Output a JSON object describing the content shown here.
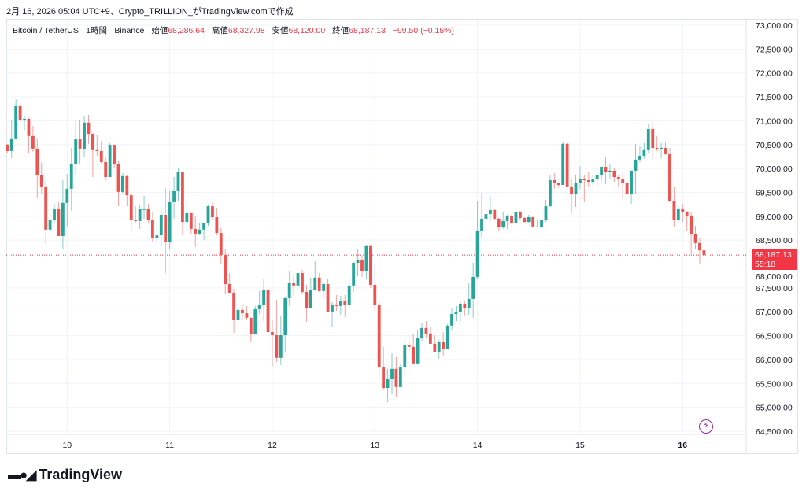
{
  "caption": "2月 16, 2026 05:04 UTC+9、Crypto_TRILLION_がTradingView.comで作成",
  "legend": {
    "symbol": "Bitcoin / TetherUS · 1時間 · Binance",
    "open_label": "始値",
    "open": "68,286.64",
    "high_label": "高値",
    "high": "68,327.98",
    "low_label": "安値",
    "low": "68,120.00",
    "close_label": "終値",
    "close": "68,187.13",
    "change": "−99.50 (−0.15%)"
  },
  "price_tag": {
    "price": "68,187.13",
    "countdown": "55:18"
  },
  "branding": {
    "logo_text": "TradingView"
  },
  "icons": {
    "alert": "lightning-icon",
    "logo": "tradingview-logo-icon"
  },
  "colors": {
    "up": "#26a69a",
    "down": "#ef5350",
    "last_price": "#f23645",
    "alert": "#9c27b0"
  },
  "chart_data": {
    "type": "candlestick",
    "interval": "1時間",
    "first_candle": "2026-02-09 10:00",
    "last_price": 68187.13,
    "ylim": [
      64500,
      73000
    ],
    "y_ticks": [
      "73,000.00",
      "72,500.00",
      "72,000.00",
      "71,500.00",
      "71,000.00",
      "70,500.00",
      "70,000.00",
      "69,500.00",
      "69,000.00",
      "68,500.00",
      "68,000.00",
      "67,500.00",
      "67,000.00",
      "66,500.00",
      "66,000.00",
      "65,500.00",
      "65,000.00",
      "64,500.00"
    ],
    "x_ticks": [
      "10",
      "11",
      "12",
      "13",
      "14",
      "15",
      "16"
    ],
    "grid": true,
    "ohlc": [
      [
        70500,
        70515,
        70330,
        70365
      ],
      [
        70365,
        71005,
        70215,
        70630
      ],
      [
        70630,
        71450,
        70610,
        71305
      ],
      [
        71305,
        71355,
        70925,
        71005
      ],
      [
        71005,
        71105,
        70810,
        71040
      ],
      [
        71040,
        71055,
        70315,
        70680
      ],
      [
        70680,
        70890,
        70350,
        70415
      ],
      [
        70415,
        70610,
        69395,
        69870
      ],
      [
        69870,
        70120,
        69475,
        69625
      ],
      [
        69625,
        69740,
        68420,
        68720
      ],
      [
        68720,
        69030,
        68570,
        68930
      ],
      [
        68930,
        69260,
        68865,
        69145
      ],
      [
        69145,
        69295,
        68585,
        68585
      ],
      [
        68585,
        69755,
        68305,
        69280
      ],
      [
        69280,
        69885,
        68785,
        69575
      ],
      [
        69575,
        70430,
        69115,
        70100
      ],
      [
        70100,
        71005,
        69870,
        70610
      ],
      [
        70610,
        71005,
        70085,
        70415
      ],
      [
        70415,
        71090,
        70250,
        70960
      ],
      [
        70960,
        71120,
        70515,
        70725
      ],
      [
        70725,
        70745,
        69820,
        70400
      ],
      [
        70400,
        70710,
        70265,
        70365
      ],
      [
        70365,
        70580,
        70100,
        70135
      ],
      [
        70135,
        70250,
        69755,
        69820
      ],
      [
        69820,
        70530,
        69820,
        70495
      ],
      [
        70495,
        70495,
        70000,
        70100
      ],
      [
        70100,
        70165,
        69210,
        69510
      ],
      [
        69510,
        69905,
        69475,
        69840
      ],
      [
        69840,
        69870,
        69210,
        69440
      ],
      [
        69440,
        69490,
        68685,
        68915
      ],
      [
        68915,
        69210,
        68865,
        68900
      ],
      [
        68900,
        69230,
        68735,
        69145
      ],
      [
        69145,
        69425,
        68950,
        69150
      ],
      [
        69150,
        69260,
        68865,
        68915
      ],
      [
        68915,
        69095,
        68455,
        68535
      ],
      [
        68535,
        68865,
        68440,
        68600
      ],
      [
        68600,
        69145,
        68370,
        69030
      ],
      [
        69030,
        69590,
        67810,
        68455
      ],
      [
        68455,
        69525,
        68305,
        69295
      ],
      [
        69295,
        69820,
        68950,
        69525
      ],
      [
        69525,
        70000,
        69310,
        69935
      ],
      [
        69935,
        69935,
        68600,
        68880
      ],
      [
        68880,
        69310,
        68700,
        69065
      ],
      [
        69065,
        69065,
        68635,
        68735
      ],
      [
        68735,
        69000,
        68355,
        68635
      ],
      [
        68635,
        68865,
        68600,
        68720
      ],
      [
        68720,
        68865,
        68505,
        68850
      ],
      [
        68850,
        69245,
        68800,
        69210
      ],
      [
        69210,
        69295,
        68915,
        68980
      ],
      [
        68980,
        69180,
        68600,
        68650
      ],
      [
        68650,
        68750,
        68010,
        68190
      ],
      [
        68190,
        68320,
        67365,
        67580
      ],
      [
        67580,
        67810,
        67400,
        67400
      ],
      [
        67400,
        67480,
        66560,
        66825
      ],
      [
        66825,
        67250,
        66660,
        67040
      ],
      [
        67040,
        67135,
        66825,
        66970
      ],
      [
        66970,
        67120,
        66825,
        66875
      ],
      [
        66875,
        66875,
        66380,
        66525
      ],
      [
        66525,
        67120,
        66525,
        67055
      ],
      [
        67055,
        67435,
        66955,
        67135
      ],
      [
        67135,
        67680,
        66805,
        67450
      ],
      [
        67450,
        68835,
        66445,
        66575
      ],
      [
        66575,
        66825,
        65850,
        66510
      ],
      [
        66510,
        67250,
        65950,
        66035
      ],
      [
        66035,
        66925,
        65885,
        66510
      ],
      [
        66510,
        67320,
        66165,
        67285
      ],
      [
        67285,
        67860,
        67120,
        67600
      ],
      [
        67600,
        67760,
        67350,
        67550
      ],
      [
        67550,
        68370,
        67415,
        67810
      ],
      [
        67810,
        67880,
        67385,
        67415
      ],
      [
        67415,
        67565,
        66790,
        67070
      ],
      [
        67070,
        67715,
        67070,
        67465
      ],
      [
        67465,
        68060,
        67450,
        67715
      ],
      [
        67715,
        67810,
        67415,
        67435
      ],
      [
        67435,
        67630,
        67300,
        67580
      ],
      [
        67580,
        67680,
        67005,
        67005
      ],
      [
        67005,
        67205,
        66675,
        67135
      ],
      [
        67135,
        67350,
        67020,
        67120
      ],
      [
        67120,
        67335,
        66940,
        67220
      ],
      [
        67220,
        67350,
        66890,
        67135
      ],
      [
        67135,
        67715,
        67055,
        67550
      ],
      [
        67550,
        68045,
        67415,
        68025
      ],
      [
        68025,
        68305,
        67745,
        68075
      ],
      [
        68075,
        68175,
        67730,
        67860
      ],
      [
        67860,
        68405,
        67695,
        68390
      ],
      [
        68390,
        68405,
        67500,
        67565
      ],
      [
        67565,
        67995,
        67020,
        67135
      ],
      [
        67135,
        67235,
        65570,
        65850
      ],
      [
        65850,
        66265,
        65375,
        65405
      ],
      [
        65405,
        65805,
        65110,
        65590
      ],
      [
        65590,
        66130,
        65275,
        65805
      ],
      [
        65805,
        66050,
        65225,
        65425
      ],
      [
        65425,
        65900,
        65425,
        65850
      ],
      [
        65850,
        66410,
        65655,
        66295
      ],
      [
        66295,
        66495,
        66165,
        66265
      ],
      [
        66265,
        66525,
        65900,
        65920
      ],
      [
        65920,
        66625,
        65920,
        66460
      ],
      [
        66460,
        66775,
        66395,
        66660
      ],
      [
        66660,
        66805,
        66460,
        66545
      ],
      [
        66545,
        66675,
        66330,
        66330
      ],
      [
        66330,
        66510,
        66165,
        66165
      ],
      [
        66165,
        66410,
        66015,
        66365
      ],
      [
        66365,
        66575,
        66065,
        66215
      ],
      [
        66215,
        66740,
        66215,
        66710
      ],
      [
        66710,
        67070,
        66625,
        66955
      ],
      [
        66955,
        67120,
        66805,
        66990
      ],
      [
        66990,
        67235,
        66790,
        67170
      ],
      [
        67170,
        67235,
        66925,
        67070
      ],
      [
        67070,
        67615,
        66940,
        67270
      ],
      [
        67270,
        68025,
        66875,
        67730
      ],
      [
        67730,
        69310,
        67695,
        68700
      ],
      [
        68700,
        69490,
        68535,
        68950
      ],
      [
        68950,
        69245,
        68900,
        69045
      ],
      [
        69045,
        69410,
        68900,
        69130
      ],
      [
        69130,
        69145,
        68915,
        68950
      ],
      [
        68950,
        68965,
        68685,
        68765
      ],
      [
        68765,
        69080,
        68735,
        68900
      ],
      [
        68900,
        69030,
        68735,
        69000
      ],
      [
        69000,
        69030,
        68830,
        68850
      ],
      [
        68850,
        69130,
        68830,
        69095
      ],
      [
        69095,
        69115,
        68930,
        68965
      ],
      [
        68965,
        68980,
        68865,
        68880
      ],
      [
        68880,
        69030,
        68850,
        68980
      ],
      [
        68980,
        69000,
        68765,
        68785
      ],
      [
        68785,
        68915,
        68765,
        68770
      ],
      [
        68770,
        68930,
        68750,
        68930
      ],
      [
        68930,
        69345,
        68880,
        69210
      ],
      [
        69210,
        69870,
        69195,
        69755
      ],
      [
        69755,
        69905,
        69575,
        69705
      ],
      [
        69705,
        69705,
        69605,
        69655
      ],
      [
        69655,
        70560,
        69655,
        70515
      ],
      [
        70515,
        70530,
        69605,
        69625
      ],
      [
        69625,
        69770,
        69065,
        69460
      ],
      [
        69460,
        69855,
        69195,
        69705
      ],
      [
        69705,
        70050,
        69575,
        69790
      ],
      [
        69790,
        69870,
        69295,
        69755
      ],
      [
        69755,
        69935,
        69625,
        69720
      ],
      [
        69720,
        69855,
        69655,
        69770
      ],
      [
        69770,
        69920,
        69625,
        69870
      ],
      [
        69870,
        70035,
        69740,
        70035
      ],
      [
        70035,
        70250,
        69675,
        69935
      ],
      [
        69935,
        70100,
        69790,
        69955
      ],
      [
        69955,
        70020,
        69720,
        69820
      ],
      [
        69820,
        69855,
        69605,
        69770
      ],
      [
        69770,
        69905,
        69360,
        69705
      ],
      [
        69705,
        69770,
        69325,
        69460
      ],
      [
        69460,
        69955,
        69260,
        69955
      ],
      [
        69955,
        70515,
        69460,
        70185
      ],
      [
        70185,
        70465,
        70135,
        70265
      ],
      [
        70265,
        70530,
        70200,
        70400
      ],
      [
        70400,
        70940,
        70315,
        70825
      ],
      [
        70825,
        70990,
        70185,
        70430
      ],
      [
        70430,
        70680,
        70365,
        70415
      ],
      [
        70415,
        70530,
        70215,
        70430
      ],
      [
        70430,
        70545,
        70280,
        70300
      ],
      [
        70300,
        70430,
        69295,
        69310
      ],
      [
        69310,
        69625,
        68785,
        68930
      ],
      [
        68930,
        69210,
        68850,
        69160
      ],
      [
        69160,
        69260,
        68880,
        69095
      ],
      [
        69095,
        69115,
        68685,
        69015
      ],
      [
        69015,
        69080,
        68205,
        68635
      ],
      [
        68635,
        68800,
        68305,
        68440
      ],
      [
        68440,
        68535,
        67995,
        68285
      ],
      [
        68286.64,
        68327.98,
        68120.0,
        68187.13
      ]
    ]
  }
}
